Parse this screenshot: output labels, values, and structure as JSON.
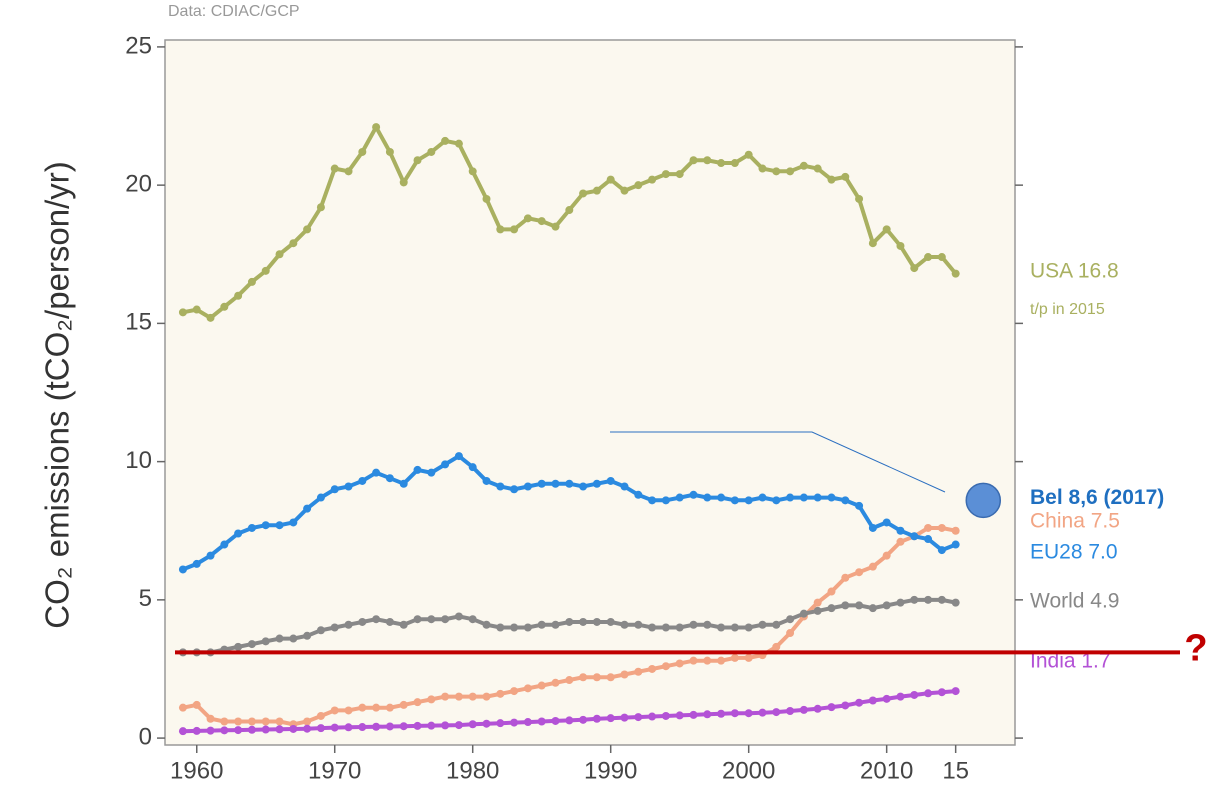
{
  "chart_data": {
    "type": "line",
    "source": "Data: CDIAC/GCP",
    "y_label": "CO₂ emissions (tCO₂/person/yr)",
    "x": [
      1959,
      1960,
      1961,
      1962,
      1963,
      1964,
      1965,
      1966,
      1967,
      1968,
      1969,
      1970,
      1971,
      1972,
      1973,
      1974,
      1975,
      1976,
      1977,
      1978,
      1979,
      1980,
      1981,
      1982,
      1983,
      1984,
      1985,
      1986,
      1987,
      1988,
      1989,
      1990,
      1991,
      1992,
      1993,
      1994,
      1995,
      1996,
      1997,
      1998,
      1999,
      2000,
      2001,
      2002,
      2003,
      2004,
      2005,
      2006,
      2007,
      2008,
      2009,
      2010,
      2011,
      2012,
      2013,
      2014,
      2015
    ],
    "series": [
      {
        "name": "USA 16.8",
        "note": "t/p in 2015",
        "color": "#a9b060",
        "values": [
          15.4,
          15.5,
          15.2,
          15.6,
          16.0,
          16.5,
          16.9,
          17.5,
          17.9,
          18.4,
          19.2,
          20.6,
          20.5,
          21.2,
          22.1,
          21.2,
          20.1,
          20.9,
          21.2,
          21.6,
          21.5,
          20.5,
          19.5,
          18.4,
          18.4,
          18.8,
          18.7,
          18.5,
          19.1,
          19.7,
          19.8,
          20.2,
          19.8,
          20.0,
          20.2,
          20.4,
          20.4,
          20.9,
          20.9,
          20.8,
          20.8,
          21.1,
          20.6,
          20.5,
          20.5,
          20.7,
          20.6,
          20.2,
          20.3,
          19.5,
          17.9,
          18.4,
          17.8,
          17.0,
          17.4,
          17.4,
          16.8
        ]
      },
      {
        "name": "China 7.5",
        "color": "#f2a584",
        "values": [
          1.1,
          1.2,
          0.7,
          0.6,
          0.6,
          0.6,
          0.6,
          0.6,
          0.5,
          0.6,
          0.8,
          1.0,
          1.0,
          1.1,
          1.1,
          1.1,
          1.2,
          1.3,
          1.4,
          1.5,
          1.5,
          1.5,
          1.5,
          1.6,
          1.7,
          1.8,
          1.9,
          2.0,
          2.1,
          2.2,
          2.2,
          2.2,
          2.3,
          2.4,
          2.5,
          2.6,
          2.7,
          2.8,
          2.8,
          2.8,
          2.9,
          2.9,
          3.0,
          3.3,
          3.8,
          4.4,
          4.9,
          5.3,
          5.8,
          6.0,
          6.2,
          6.6,
          7.1,
          7.3,
          7.6,
          7.6,
          7.5
        ]
      },
      {
        "name": "EU28 7.0",
        "color": "#2b8ae0",
        "values": [
          6.1,
          6.3,
          6.6,
          7.0,
          7.4,
          7.6,
          7.7,
          7.7,
          7.8,
          8.3,
          8.7,
          9.0,
          9.1,
          9.3,
          9.6,
          9.4,
          9.2,
          9.7,
          9.6,
          9.9,
          10.2,
          9.8,
          9.3,
          9.1,
          9.0,
          9.1,
          9.2,
          9.2,
          9.2,
          9.1,
          9.2,
          9.3,
          9.1,
          8.8,
          8.6,
          8.6,
          8.7,
          8.8,
          8.7,
          8.7,
          8.6,
          8.6,
          8.7,
          8.6,
          8.7,
          8.7,
          8.7,
          8.7,
          8.6,
          8.4,
          7.6,
          7.8,
          7.5,
          7.3,
          7.2,
          6.8,
          7.0
        ]
      },
      {
        "name": "World 4.9",
        "color": "#888888",
        "values": [
          3.1,
          3.1,
          3.1,
          3.2,
          3.3,
          3.4,
          3.5,
          3.6,
          3.6,
          3.7,
          3.9,
          4.0,
          4.1,
          4.2,
          4.3,
          4.2,
          4.1,
          4.3,
          4.3,
          4.3,
          4.4,
          4.3,
          4.1,
          4.0,
          4.0,
          4.0,
          4.1,
          4.1,
          4.2,
          4.2,
          4.2,
          4.2,
          4.1,
          4.1,
          4.0,
          4.0,
          4.0,
          4.1,
          4.1,
          4.0,
          4.0,
          4.0,
          4.1,
          4.1,
          4.3,
          4.5,
          4.6,
          4.7,
          4.8,
          4.8,
          4.7,
          4.8,
          4.9,
          5.0,
          5.0,
          5.0,
          4.9
        ]
      },
      {
        "name": "India 1.7",
        "color": "#b352d6",
        "values": [
          0.25,
          0.26,
          0.27,
          0.28,
          0.29,
          0.3,
          0.31,
          0.32,
          0.33,
          0.34,
          0.36,
          0.38,
          0.39,
          0.4,
          0.41,
          0.42,
          0.43,
          0.44,
          0.45,
          0.46,
          0.47,
          0.5,
          0.52,
          0.54,
          0.56,
          0.58,
          0.6,
          0.62,
          0.64,
          0.66,
          0.7,
          0.72,
          0.74,
          0.76,
          0.78,
          0.8,
          0.82,
          0.84,
          0.86,
          0.88,
          0.9,
          0.9,
          0.92,
          0.94,
          0.98,
          1.02,
          1.06,
          1.12,
          1.18,
          1.28,
          1.36,
          1.42,
          1.5,
          1.56,
          1.62,
          1.66,
          1.7
        ]
      }
    ],
    "highlight": {
      "label": "Bel 8,6 (2017)",
      "x": 2017,
      "value": 8.6,
      "color": "#5b8fd6"
    },
    "reference": {
      "value": 3.1,
      "label": "?",
      "color": "#c00000"
    },
    "xlim": [
      1957.7,
      2019.3
    ],
    "ylim": [
      -0.25,
      25.25
    ],
    "xticks": [
      1960,
      1970,
      1980,
      1990,
      2000,
      2010,
      {
        "value": 2015,
        "label": "15"
      }
    ],
    "yticks": [
      0,
      5,
      10,
      15,
      20,
      25
    ]
  }
}
